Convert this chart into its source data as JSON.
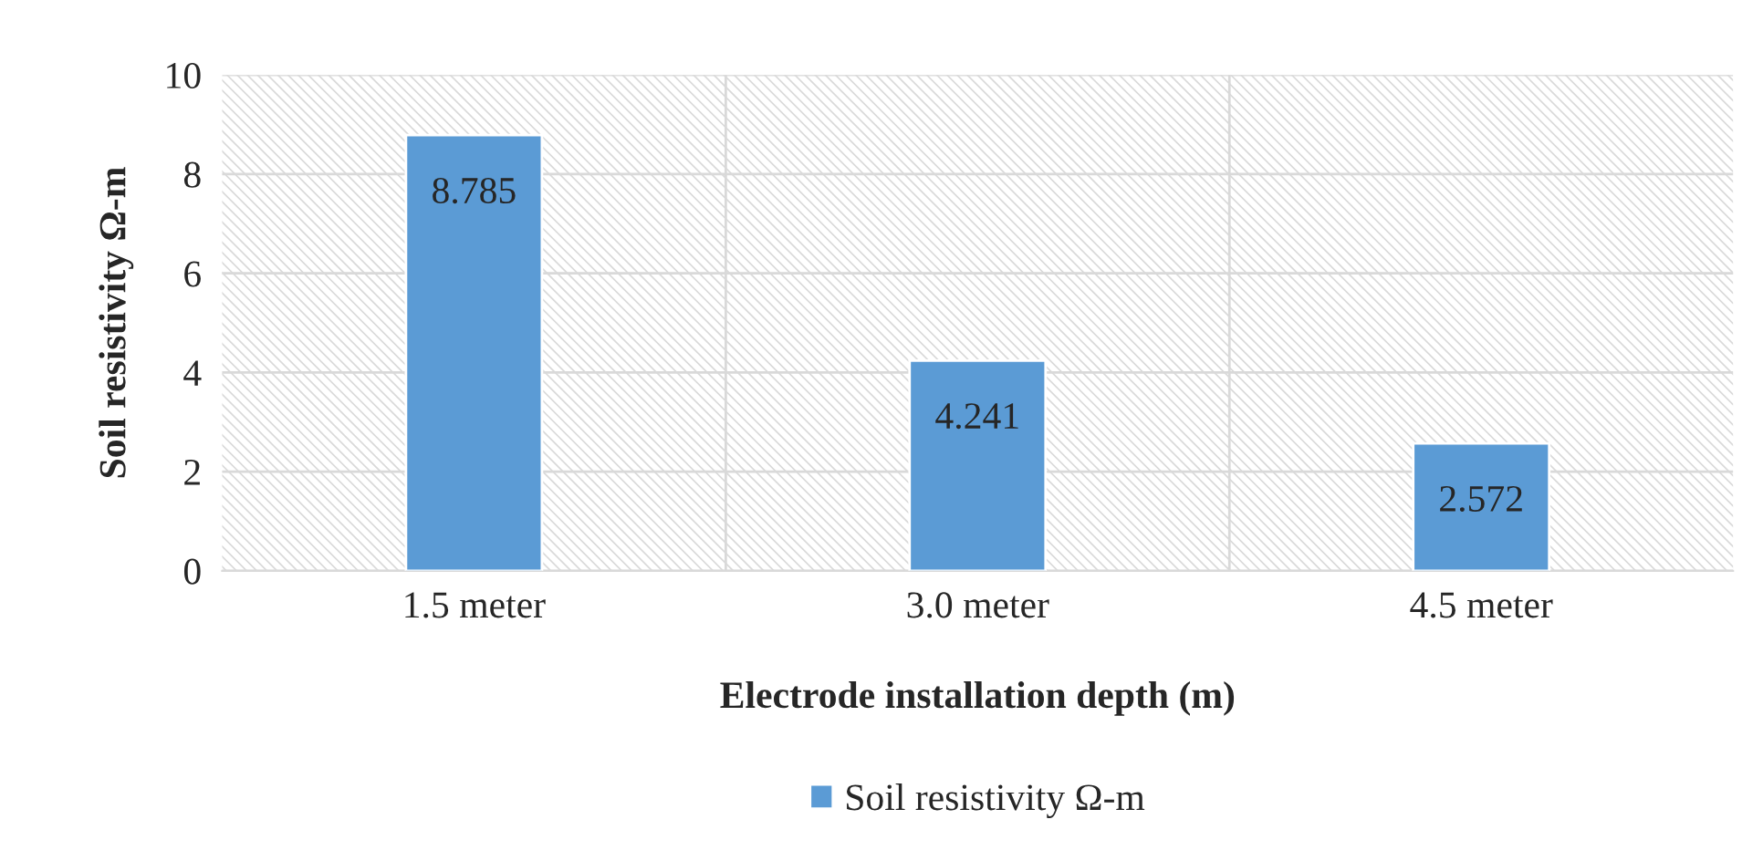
{
  "chart_data": {
    "type": "bar",
    "xlabel": "Electrode installation depth (m)",
    "ylabel": "Soil resistivity Ω-m",
    "categories": [
      "1.5 meter",
      "3.0 meter",
      "4.5 meter"
    ],
    "series": [
      {
        "name": "Soil resistivity Ω-m",
        "color": "#5b9bd5",
        "values": [
          8.785,
          4.241,
          2.572
        ]
      }
    ],
    "ylim": [
      0,
      10
    ],
    "yticks": [
      0,
      2,
      4,
      6,
      8,
      10
    ],
    "grid": true,
    "data_labels": true,
    "legend": "bottom"
  }
}
